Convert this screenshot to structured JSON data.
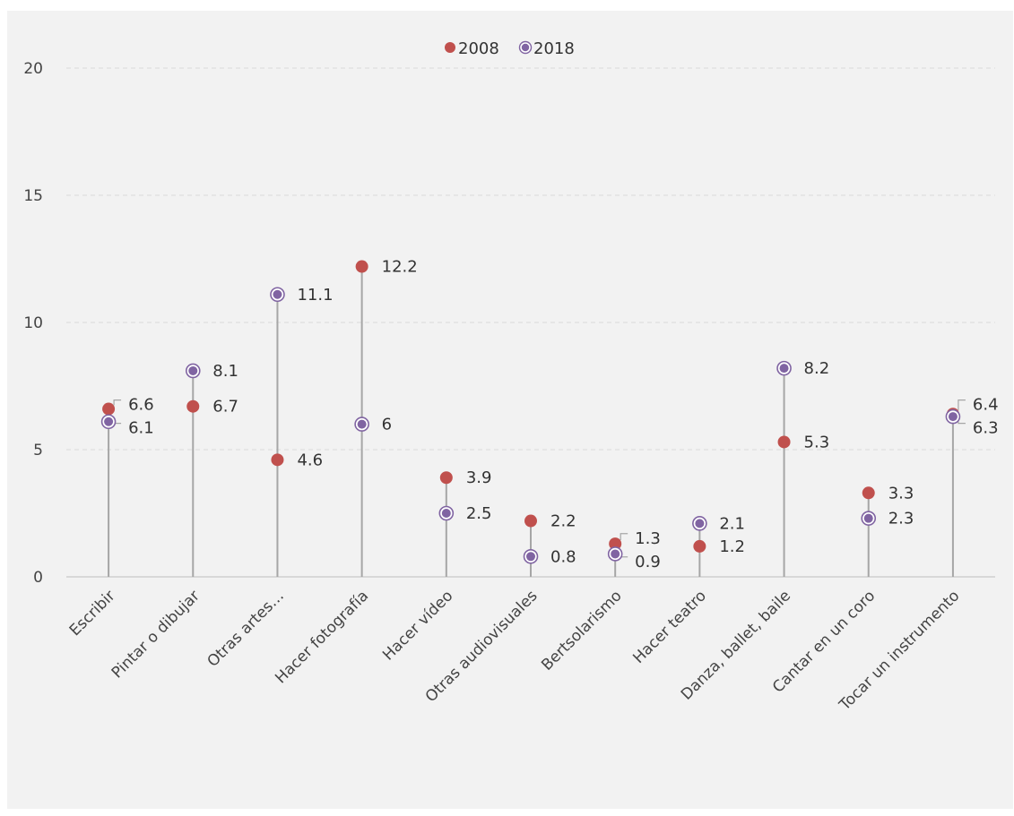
{
  "chart_data": {
    "type": "scatter",
    "subtype": "lollipop",
    "categories": [
      "Escribir",
      "Pintar o dibujar",
      "Otras artes…",
      "Hacer fotografía",
      "Hacer vídeo",
      "Otras audiovisuales",
      "Bertsolarismo",
      "Hacer teatro",
      "Danza, ballet, baile",
      "Cantar en un coro",
      "Tocar un instrumento"
    ],
    "series": [
      {
        "name": "2008",
        "color": "#c0504d",
        "values": [
          6.6,
          6.7,
          4.6,
          12.2,
          3.9,
          2.2,
          1.3,
          1.2,
          5.3,
          3.3,
          6.4
        ]
      },
      {
        "name": "2018",
        "color": "#8064a2",
        "values": [
          6.1,
          8.1,
          11.1,
          6,
          2.5,
          0.8,
          0.9,
          2.1,
          8.2,
          2.3,
          6.3
        ]
      }
    ],
    "ylim": [
      0,
      20
    ],
    "yticks": [
      0,
      5,
      10,
      15,
      20
    ],
    "xlabel": "",
    "ylabel": "",
    "grid": true,
    "legend": "top-center"
  }
}
